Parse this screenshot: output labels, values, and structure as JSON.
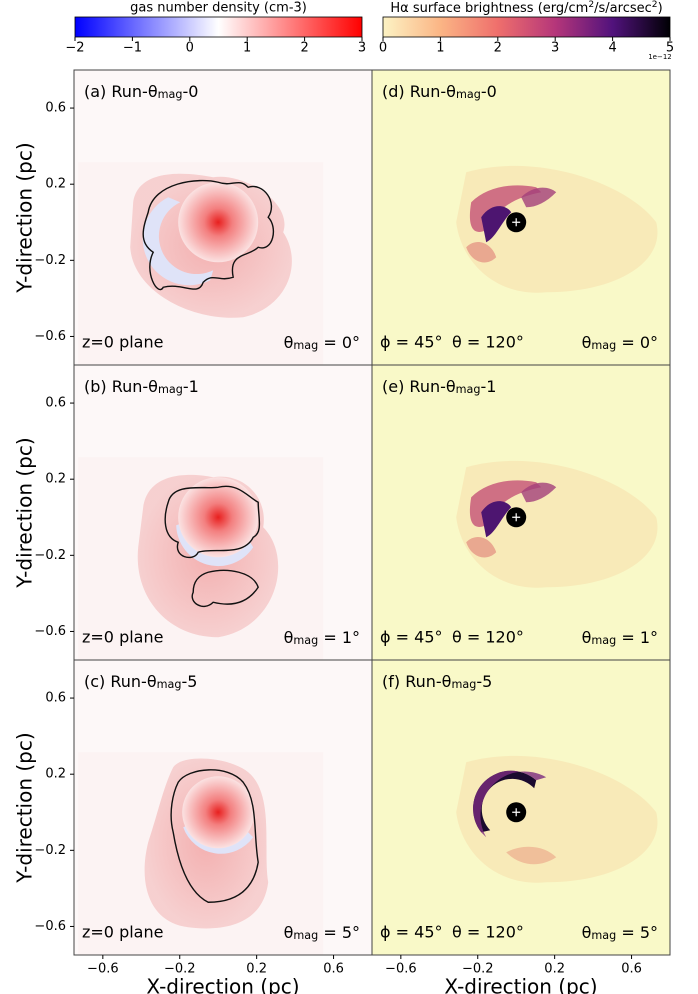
{
  "chart_data": [
    {
      "type": "colorbar",
      "label": "gas number density (cm-3)",
      "xlim": [
        -2,
        3
      ],
      "xticks": [
        {
          "value": -2,
          "label": "−2"
        },
        {
          "value": -1,
          "label": "−1"
        },
        0,
        1,
        2,
        3
      ],
      "colors": [
        "#0000ff",
        "#ffffff",
        "#ff0000"
      ]
    },
    {
      "type": "colorbar",
      "label": [
        "Hα surface brightness (erg/cm",
        "2",
        "/s/arcsec",
        "2",
        ")"
      ],
      "xlim": [
        0,
        5
      ],
      "xticks": [
        0,
        1,
        2,
        3,
        4,
        5
      ],
      "offset_text": "1e−12",
      "colors": [
        "#fcf3c4",
        "#fbb585",
        "#ef6f6c",
        "#b5367a",
        "#51127c",
        "#000004"
      ]
    },
    {
      "type": "density",
      "title": [
        "(a) Run-θ",
        "mag",
        "-0"
      ],
      "annotations": [
        "z=0 plane",
        [
          "θ",
          "mag",
          " = 0°"
        ]
      ],
      "xlim": [
        -0.75,
        0.8
      ],
      "ylim": [
        -0.75,
        0.8
      ],
      "ylabel": "Y-direction (pc)",
      "yticks": [
        {
          "value": -0.6,
          "label": "−0.6"
        },
        {
          "value": -0.2,
          "label": "−0.2"
        },
        0.2,
        0.6
      ]
    },
    {
      "type": "halpha",
      "title": [
        "(d) Run-θ",
        "mag",
        "-0"
      ],
      "annotations": [
        "ϕ = 45°",
        "θ = 120°",
        [
          "θ",
          "mag",
          " = 0°"
        ]
      ],
      "xlim": [
        -0.75,
        0.8
      ],
      "ylim": [
        -0.75,
        0.8
      ]
    },
    {
      "type": "density",
      "title": [
        "(b) Run-θ",
        "mag",
        "-1"
      ],
      "annotations": [
        "z=0 plane",
        [
          "θ",
          "mag",
          " = 1°"
        ]
      ],
      "xlim": [
        -0.75,
        0.8
      ],
      "ylim": [
        -0.75,
        0.8
      ],
      "ylabel": "Y-direction (pc)",
      "yticks": [
        {
          "value": -0.6,
          "label": "−0.6"
        },
        {
          "value": -0.2,
          "label": "−0.2"
        },
        0.2,
        0.6
      ]
    },
    {
      "type": "halpha",
      "title": [
        "(e) Run-θ",
        "mag",
        "-1"
      ],
      "annotations": [
        "ϕ = 45°",
        "θ = 120°",
        [
          "θ",
          "mag",
          " = 1°"
        ]
      ],
      "xlim": [
        -0.75,
        0.8
      ],
      "ylim": [
        -0.75,
        0.8
      ]
    },
    {
      "type": "density",
      "title": [
        "(c) Run-θ",
        "mag",
        "-5"
      ],
      "annotations": [
        "z=0 plane",
        [
          "θ",
          "mag",
          " = 5°"
        ]
      ],
      "xlim": [
        -0.75,
        0.8
      ],
      "ylim": [
        -0.75,
        0.8
      ],
      "ylabel": "Y-direction (pc)",
      "xlabel": "X-direction (pc)",
      "yticks": [
        {
          "value": -0.6,
          "label": "−0.6"
        },
        {
          "value": -0.2,
          "label": "−0.2"
        },
        0.2,
        0.6
      ],
      "xticks": [
        {
          "value": -0.6,
          "label": "−0.6"
        },
        {
          "value": -0.2,
          "label": "−0.2"
        },
        0.2,
        0.6
      ]
    },
    {
      "type": "halpha",
      "title": [
        "(f) Run-θ",
        "mag",
        "-5"
      ],
      "annotations": [
        "ϕ = 45°",
        "θ = 120°",
        [
          "θ",
          "mag",
          " = 5°"
        ]
      ],
      "xlim": [
        -0.75,
        0.8
      ],
      "ylim": [
        -0.75,
        0.8
      ],
      "xlabel": "X-direction (pc)",
      "xticks": [
        {
          "value": -0.6,
          "label": "−0.6"
        },
        {
          "value": -0.2,
          "label": "−0.2"
        },
        0.2,
        0.6
      ]
    }
  ]
}
